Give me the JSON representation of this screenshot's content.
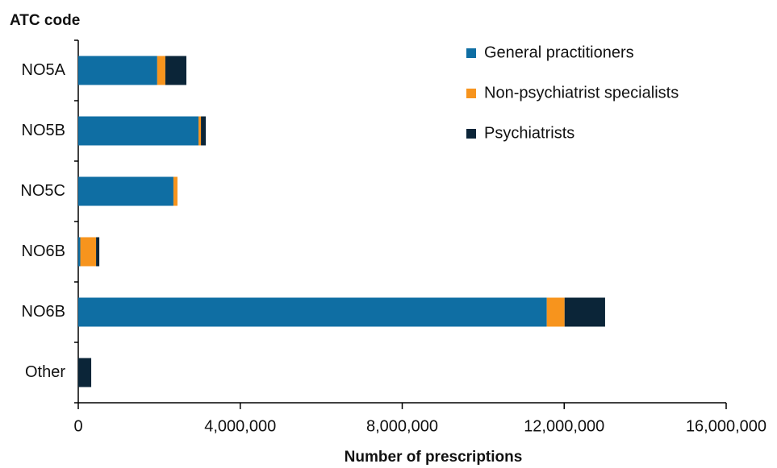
{
  "chart_data": {
    "type": "stacked-barh",
    "y_axis_label": "ATC code",
    "x_axis_label": "Number of prescriptions",
    "categories": [
      "NO5A",
      "NO5B",
      "NO5C",
      "NO6B",
      "NO6B",
      "Other"
    ],
    "series": [
      {
        "name": "General practitioners",
        "color": "#0f6ea3",
        "values": [
          1950000,
          2970000,
          2350000,
          50000,
          11570000,
          0
        ]
      },
      {
        "name": "Non-psychiatrist specialists",
        "color": "#f7941d",
        "values": [
          200000,
          60000,
          100000,
          390000,
          440000,
          0
        ]
      },
      {
        "name": "Psychiatrists",
        "color": "#0b2538",
        "values": [
          520000,
          120000,
          0,
          80000,
          1000000,
          320000
        ]
      }
    ],
    "xlim": [
      0,
      16000000
    ],
    "xticks": [
      0,
      {
        "value": 4000000,
        "label": "4,000,000"
      },
      {
        "value": 8000000,
        "label": "8,000,000"
      },
      {
        "value": 12000000,
        "label": "12,000,000"
      },
      {
        "value": 16000000,
        "label": "16,000,000"
      }
    ],
    "legend": "top-right"
  }
}
